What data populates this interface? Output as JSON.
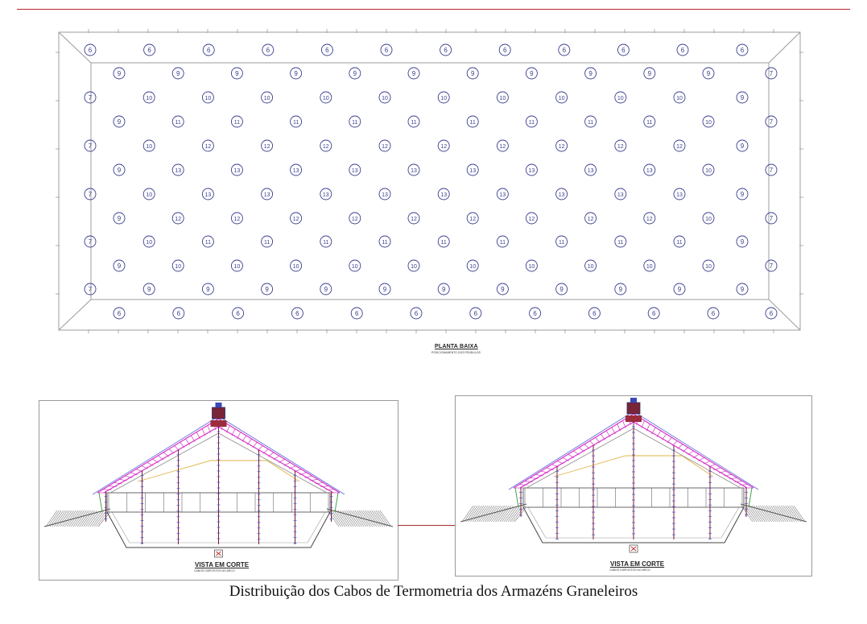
{
  "plan": {
    "title": "PLANTA BAIXA",
    "subtitle": "POSICIONAMENTO DOS PENDULOS",
    "rows": [
      [
        "6",
        "6",
        "6",
        "6",
        "6",
        "6",
        "6",
        "6",
        "6",
        "6",
        "6",
        "6"
      ],
      [
        "9",
        "9",
        "9",
        "9",
        "9",
        "9",
        "9",
        "9",
        "9",
        "9",
        "9",
        "7"
      ],
      [
        "7",
        "10",
        "10",
        "10",
        "10",
        "10",
        "10",
        "10",
        "10",
        "10",
        "10",
        "9"
      ],
      [
        "9",
        "11",
        "11",
        "11",
        "11",
        "11",
        "11",
        "11",
        "11",
        "11",
        "10",
        "7"
      ],
      [
        "7",
        "10",
        "12",
        "12",
        "12",
        "12",
        "12",
        "12",
        "12",
        "12",
        "12",
        "9"
      ],
      [
        "9",
        "13",
        "13",
        "13",
        "13",
        "13",
        "13",
        "13",
        "13",
        "13",
        "10",
        "7"
      ],
      [
        "7",
        "10",
        "13",
        "13",
        "13",
        "13",
        "13",
        "13",
        "13",
        "13",
        "13",
        "9"
      ],
      [
        "9",
        "12",
        "12",
        "12",
        "12",
        "12",
        "12",
        "12",
        "12",
        "12",
        "10",
        "7"
      ],
      [
        "7",
        "10",
        "11",
        "11",
        "11",
        "11",
        "11",
        "11",
        "11",
        "11",
        "11",
        "9"
      ],
      [
        "9",
        "10",
        "10",
        "10",
        "10",
        "10",
        "10",
        "10",
        "10",
        "10",
        "10",
        "7"
      ],
      [
        "7",
        "9",
        "9",
        "9",
        "9",
        "9",
        "9",
        "9",
        "9",
        "9",
        "9",
        "9"
      ],
      [
        "6",
        "6",
        "6",
        "6",
        "6",
        "6",
        "6",
        "6",
        "6",
        "6",
        "6",
        "6"
      ]
    ],
    "circle_color": "#3a3f8f"
  },
  "sections": [
    {
      "label": "VISTA EM CORTE",
      "sublabel": "CABOS DISPOSTOS NO ARCO"
    },
    {
      "label": "VISTA EM CORTE",
      "sublabel": "CABOS DISPOSTOS NO ARCO"
    }
  ],
  "colors": {
    "rule": "#b8262b",
    "roof_truss": "#d633c8",
    "roof_outline": "#5a6bd8",
    "inner_roof": "#e0b44a",
    "cable": "#7a1a3a",
    "cable_tick": "#3b55d0"
  },
  "caption": "Distribuição dos Cabos de Termometria dos Armazéns Graneleiros"
}
